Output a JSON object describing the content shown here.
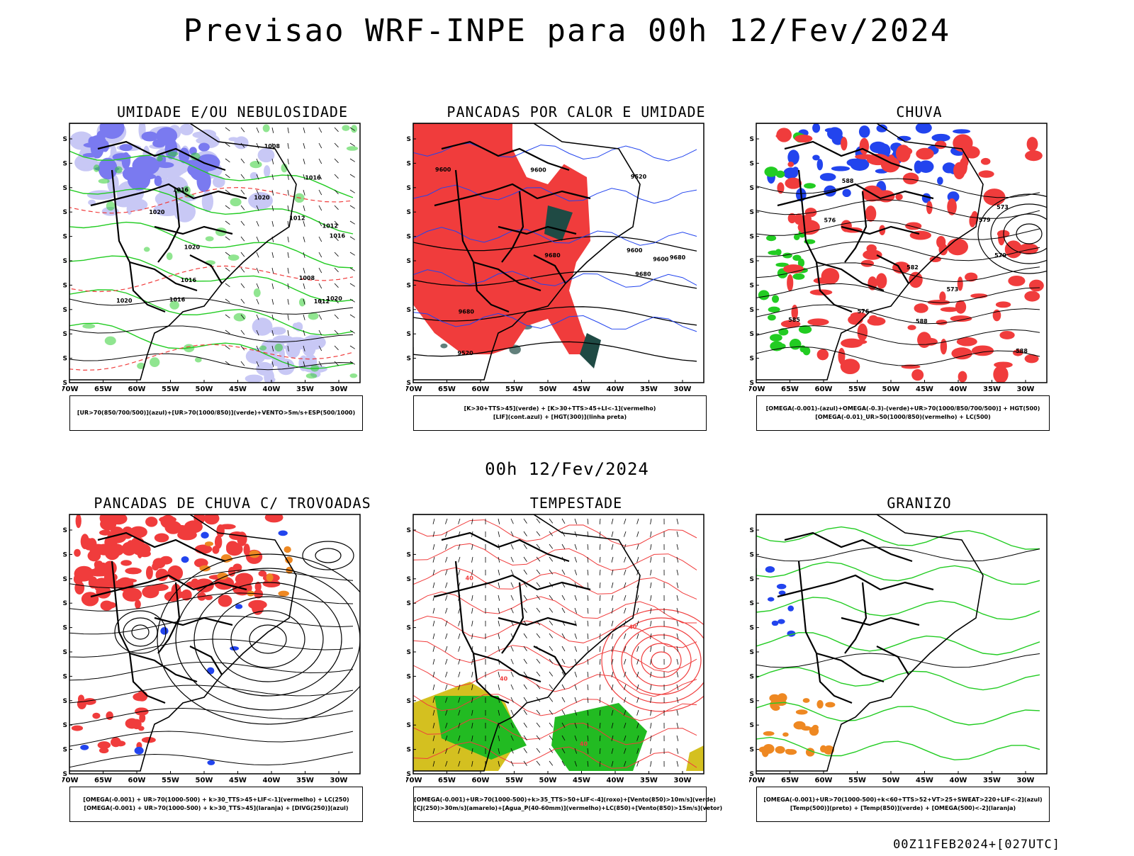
{
  "main_title": "Previsao WRF-INPE  para 00h 12/Fev/2024",
  "mid_title": "00h 12/Fev/2024",
  "footer": "00Z11FEB2024+[027UTC]",
  "lat_labels": [
    "12S",
    "15S",
    "18S",
    "21S",
    "24S",
    "27S",
    "30S",
    "33S",
    "36S",
    "39S",
    "42S"
  ],
  "lon_labels": [
    "70W",
    "65W",
    "60W",
    "55W",
    "50W",
    "45W",
    "40W",
    "35W",
    "30W"
  ],
  "colors": {
    "humidity_blue": "#7a7af0",
    "light_blue": "#c8c8f5",
    "green": "#22cc22",
    "red": "#f03c3c",
    "dark_teal": "#1f4a44",
    "blue": "#2244ee",
    "orange": "#ee8822",
    "yellow": "#d4c020"
  },
  "panels": [
    {
      "title": "UMIDADE E/OU NEBULOSIDADE",
      "legend": [
        "[UR>70(850/700/500)](azul)+[UR>70(1000/850)](verde)+VENTO>5m/s+ESP(500/1000)"
      ],
      "isobar_labels": [
        "1016",
        "1012",
        "1020",
        "1016",
        "1020",
        "1020",
        "1016",
        "1008",
        "1012",
        "1016",
        "1020",
        "1008",
        "1012",
        "1016",
        "1020"
      ],
      "thickness_labels": [
        "576",
        "570",
        "582",
        "570",
        "576",
        "564"
      ]
    },
    {
      "title": "PANCADAS POR CALOR E UMIDADE",
      "legend": [
        "[K>30+TTS>45](verde) + [K>30+TTS>45+LI<-1](vermelho)",
        "[LIF](cont.azul) + [HGT(300)](linha preta)"
      ],
      "height_labels": [
        "9680",
        "9680",
        "9680",
        "9600",
        "9680",
        "9600",
        "9600",
        "9520",
        "9600",
        "9520"
      ]
    },
    {
      "title": "CHUVA",
      "legend": [
        "[OMEGA(-0.001)-(azul)+OMEGA(-0.3)-(verde)+UR>70(1000/850/700/500)] + HGT(500)",
        "[OMEGA(-0.01)_UR>50(1000/850)(vermelho) + LC(500)"
      ],
      "height_labels": [
        "588",
        "588",
        "588",
        "585",
        "582",
        "579",
        "576",
        "573",
        "570",
        "576",
        "573"
      ]
    },
    {
      "title": "PANCADAS DE CHUVA C/ TROVOADAS",
      "legend": [
        "[OMEGA(-0.001) + UR>70(1000-500) + k>30_TTS>45+LIF<-1](vermelho) + LC(250)",
        "[OMEGA(-0.001) + UR>70(1000-500) + k>30_TTS>45](laranja) + [DIVG(250)](azul)"
      ]
    },
    {
      "title": "TEMPESTADE",
      "legend": [
        "[OMEGA(-0.001)+UR>70(1000-500)+k>35_TTS>50+LIF<-4](roxo)+[Vento(850)>10m/s](verde)",
        "[CJ(250)>30m/s](amarelo)+[Agua_P(40-60mm)](vermelho)+LC(850)+[Vento(850)>15m/s](vetor)"
      ],
      "contour_labels": [
        "40",
        "40",
        "40",
        "40"
      ]
    },
    {
      "title": "GRANIZO",
      "legend": [
        "[OMEGA(-0.001)+UR>70(1000-500)+k<60+TTS>52+VT>25+SWEAT>220+LIF<-2](azul)",
        "[Temp(500)](preto) + [Temp(850)](verde) + [OMEGA(500)<-2](laranja)"
      ]
    }
  ]
}
